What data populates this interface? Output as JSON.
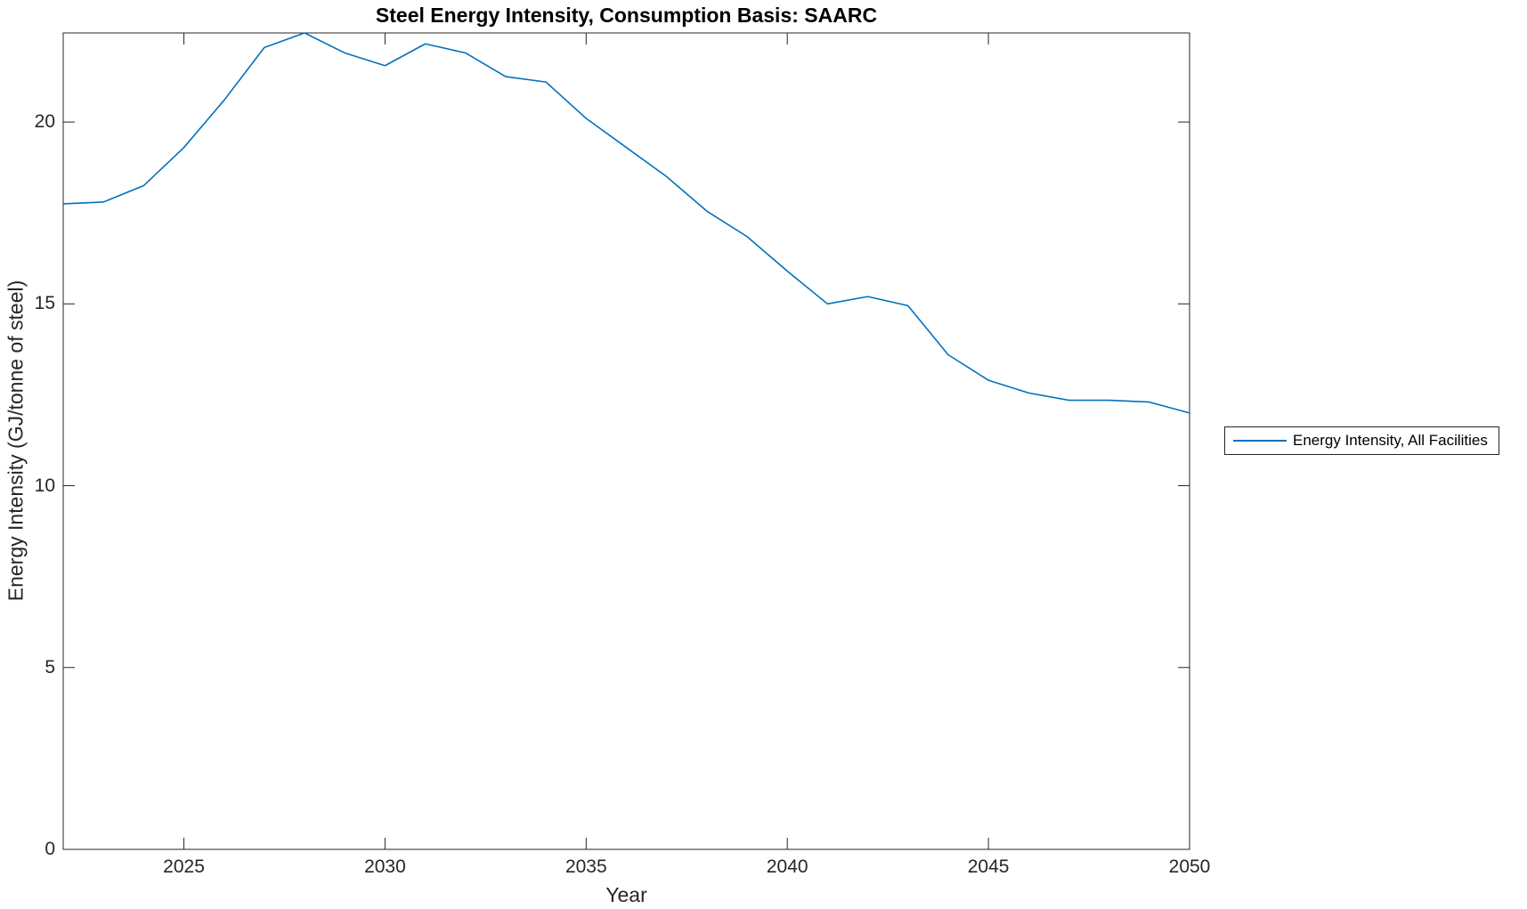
{
  "chart_data": {
    "type": "line",
    "title": "Steel Energy Intensity, Consumption Basis: SAARC",
    "xlabel": "Year",
    "ylabel": "Energy Intensity (GJ/tonne of steel)",
    "x": [
      2022,
      2023,
      2024,
      2025,
      2026,
      2027,
      2028,
      2029,
      2030,
      2031,
      2032,
      2033,
      2034,
      2035,
      2036,
      2037,
      2038,
      2039,
      2040,
      2041,
      2042,
      2043,
      2044,
      2045,
      2046,
      2047,
      2048,
      2049,
      2050
    ],
    "series": [
      {
        "name": "Energy Intensity, All Facilities",
        "values": [
          17.75,
          17.8,
          18.25,
          19.3,
          20.6,
          22.05,
          22.45,
          21.9,
          21.55,
          22.15,
          21.9,
          21.25,
          21.1,
          20.1,
          19.3,
          18.5,
          17.55,
          16.85,
          15.9,
          15.0,
          15.2,
          14.95,
          13.6,
          12.9,
          12.55,
          12.35,
          12.35,
          12.3,
          12.0
        ],
        "color": "#0072BD"
      }
    ],
    "xlim": [
      2022,
      2050
    ],
    "ylim": [
      0,
      22.45
    ],
    "xticks": [
      2025,
      2030,
      2035,
      2040,
      2045,
      2050
    ],
    "xtick_labels": [
      "2025",
      "2030",
      "2035",
      "2040",
      "2045",
      "2050"
    ],
    "yticks": [
      0,
      5,
      10,
      15,
      20
    ],
    "ytick_labels": [
      "0",
      "5",
      "10",
      "15",
      "20"
    ],
    "grid": false,
    "box": true,
    "tick_direction": "in",
    "axis_color": "#262626",
    "legend_position": "right-outside"
  },
  "legend": {
    "items": [
      {
        "label": "Energy Intensity, All Facilities",
        "color": "#0072BD"
      }
    ]
  }
}
